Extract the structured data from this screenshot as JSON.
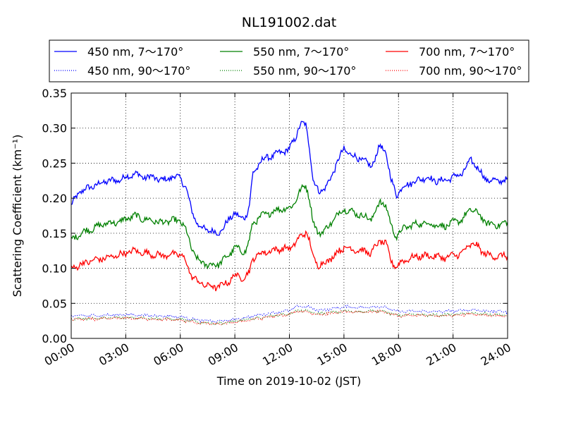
{
  "chart_data": {
    "type": "line",
    "title": "NL191002.dat",
    "xlabel": "Time on 2019-10-02 (JST)",
    "ylabel": "Scattering Coefficient (km⁻¹)",
    "xlim": [
      0,
      24
    ],
    "ylim": [
      0,
      0.35
    ],
    "xticks": [
      "00:00",
      "03:00",
      "06:00",
      "09:00",
      "12:00",
      "15:00",
      "18:00",
      "21:00",
      "24:00"
    ],
    "yticks": [
      "0.00",
      "0.05",
      "0.10",
      "0.15",
      "0.20",
      "0.25",
      "0.30",
      "0.35"
    ],
    "grid": true,
    "legend_position": "top",
    "series": [
      {
        "name": "450 nm, 7～170°",
        "color": "#0000ff",
        "style": "solid",
        "points": [
          [
            0,
            0.19
          ],
          [
            0.5,
            0.21
          ],
          [
            1,
            0.215
          ],
          [
            1.5,
            0.22
          ],
          [
            2,
            0.225
          ],
          [
            2.5,
            0.225
          ],
          [
            3,
            0.23
          ],
          [
            3.5,
            0.235
          ],
          [
            4,
            0.23
          ],
          [
            4.5,
            0.23
          ],
          [
            5,
            0.225
          ],
          [
            5.5,
            0.23
          ],
          [
            6,
            0.23
          ],
          [
            6.3,
            0.215
          ],
          [
            6.6,
            0.185
          ],
          [
            7,
            0.16
          ],
          [
            7.5,
            0.155
          ],
          [
            8,
            0.15
          ],
          [
            8.3,
            0.155
          ],
          [
            8.7,
            0.17
          ],
          [
            9,
            0.18
          ],
          [
            9.3,
            0.17
          ],
          [
            9.6,
            0.175
          ],
          [
            9.8,
            0.19
          ],
          [
            10,
            0.235
          ],
          [
            10.5,
            0.255
          ],
          [
            11,
            0.26
          ],
          [
            11.5,
            0.265
          ],
          [
            12,
            0.27
          ],
          [
            12.3,
            0.285
          ],
          [
            12.6,
            0.305
          ],
          [
            12.9,
            0.305
          ],
          [
            13.1,
            0.275
          ],
          [
            13.3,
            0.225
          ],
          [
            13.6,
            0.21
          ],
          [
            14,
            0.215
          ],
          [
            14.3,
            0.23
          ],
          [
            14.6,
            0.25
          ],
          [
            15,
            0.27
          ],
          [
            15.5,
            0.26
          ],
          [
            16,
            0.255
          ],
          [
            16.5,
            0.245
          ],
          [
            17,
            0.275
          ],
          [
            17.3,
            0.265
          ],
          [
            17.6,
            0.225
          ],
          [
            17.9,
            0.205
          ],
          [
            18.2,
            0.215
          ],
          [
            18.5,
            0.22
          ],
          [
            19,
            0.225
          ],
          [
            19.5,
            0.23
          ],
          [
            20,
            0.225
          ],
          [
            20.5,
            0.225
          ],
          [
            21,
            0.23
          ],
          [
            21.5,
            0.235
          ],
          [
            22,
            0.255
          ],
          [
            22.3,
            0.245
          ],
          [
            22.7,
            0.23
          ],
          [
            23,
            0.225
          ],
          [
            23.5,
            0.225
          ],
          [
            24,
            0.225
          ]
        ]
      },
      {
        "name": "550 nm, 7～170°",
        "color": "#008000",
        "style": "solid",
        "points": [
          [
            0,
            0.14
          ],
          [
            0.5,
            0.15
          ],
          [
            1,
            0.155
          ],
          [
            1.5,
            0.16
          ],
          [
            2,
            0.165
          ],
          [
            2.5,
            0.165
          ],
          [
            3,
            0.17
          ],
          [
            3.5,
            0.175
          ],
          [
            4,
            0.17
          ],
          [
            4.5,
            0.168
          ],
          [
            5,
            0.165
          ],
          [
            5.5,
            0.168
          ],
          [
            6,
            0.168
          ],
          [
            6.3,
            0.155
          ],
          [
            6.6,
            0.13
          ],
          [
            7,
            0.11
          ],
          [
            7.5,
            0.105
          ],
          [
            8,
            0.105
          ],
          [
            8.3,
            0.11
          ],
          [
            8.7,
            0.12
          ],
          [
            9,
            0.13
          ],
          [
            9.3,
            0.125
          ],
          [
            9.6,
            0.125
          ],
          [
            9.8,
            0.14
          ],
          [
            10,
            0.165
          ],
          [
            10.5,
            0.175
          ],
          [
            11,
            0.18
          ],
          [
            11.5,
            0.185
          ],
          [
            12,
            0.185
          ],
          [
            12.3,
            0.195
          ],
          [
            12.6,
            0.21
          ],
          [
            12.9,
            0.22
          ],
          [
            13.1,
            0.2
          ],
          [
            13.3,
            0.165
          ],
          [
            13.6,
            0.15
          ],
          [
            14,
            0.155
          ],
          [
            14.3,
            0.165
          ],
          [
            14.6,
            0.175
          ],
          [
            15,
            0.185
          ],
          [
            15.5,
            0.18
          ],
          [
            16,
            0.175
          ],
          [
            16.5,
            0.17
          ],
          [
            17,
            0.195
          ],
          [
            17.3,
            0.19
          ],
          [
            17.6,
            0.16
          ],
          [
            17.9,
            0.145
          ],
          [
            18.2,
            0.155
          ],
          [
            18.5,
            0.16
          ],
          [
            19,
            0.163
          ],
          [
            19.5,
            0.165
          ],
          [
            20,
            0.162
          ],
          [
            20.5,
            0.16
          ],
          [
            21,
            0.165
          ],
          [
            21.5,
            0.17
          ],
          [
            22,
            0.185
          ],
          [
            22.3,
            0.18
          ],
          [
            22.7,
            0.168
          ],
          [
            23,
            0.163
          ],
          [
            23.5,
            0.162
          ],
          [
            24,
            0.165
          ]
        ]
      },
      {
        "name": "700 nm, 7～170°",
        "color": "#ff0000",
        "style": "solid",
        "points": [
          [
            0,
            0.1
          ],
          [
            0.5,
            0.105
          ],
          [
            1,
            0.11
          ],
          [
            1.5,
            0.113
          ],
          [
            2,
            0.115
          ],
          [
            2.5,
            0.118
          ],
          [
            3,
            0.122
          ],
          [
            3.5,
            0.125
          ],
          [
            4,
            0.122
          ],
          [
            4.5,
            0.12
          ],
          [
            5,
            0.118
          ],
          [
            5.5,
            0.12
          ],
          [
            6,
            0.12
          ],
          [
            6.3,
            0.11
          ],
          [
            6.6,
            0.09
          ],
          [
            7,
            0.08
          ],
          [
            7.5,
            0.075
          ],
          [
            8,
            0.073
          ],
          [
            8.3,
            0.076
          ],
          [
            8.7,
            0.082
          ],
          [
            9,
            0.09
          ],
          [
            9.3,
            0.087
          ],
          [
            9.6,
            0.088
          ],
          [
            9.8,
            0.095
          ],
          [
            10,
            0.115
          ],
          [
            10.5,
            0.122
          ],
          [
            11,
            0.125
          ],
          [
            11.5,
            0.128
          ],
          [
            12,
            0.128
          ],
          [
            12.3,
            0.135
          ],
          [
            12.6,
            0.145
          ],
          [
            12.9,
            0.152
          ],
          [
            13.1,
            0.14
          ],
          [
            13.3,
            0.115
          ],
          [
            13.6,
            0.105
          ],
          [
            14,
            0.108
          ],
          [
            14.3,
            0.115
          ],
          [
            14.6,
            0.122
          ],
          [
            15,
            0.13
          ],
          [
            15.5,
            0.127
          ],
          [
            16,
            0.125
          ],
          [
            16.5,
            0.122
          ],
          [
            17,
            0.14
          ],
          [
            17.3,
            0.135
          ],
          [
            17.6,
            0.11
          ],
          [
            17.9,
            0.102
          ],
          [
            18.2,
            0.11
          ],
          [
            18.5,
            0.113
          ],
          [
            19,
            0.117
          ],
          [
            19.5,
            0.118
          ],
          [
            20,
            0.117
          ],
          [
            20.5,
            0.115
          ],
          [
            21,
            0.118
          ],
          [
            21.5,
            0.122
          ],
          [
            22,
            0.135
          ],
          [
            22.3,
            0.132
          ],
          [
            22.7,
            0.122
          ],
          [
            23,
            0.118
          ],
          [
            23.5,
            0.117
          ],
          [
            24,
            0.118
          ]
        ]
      },
      {
        "name": "450 nm, 90～170°",
        "color": "#0000ff",
        "style": "dotted",
        "points": [
          [
            0,
            0.032
          ],
          [
            2,
            0.033
          ],
          [
            3,
            0.034
          ],
          [
            4,
            0.033
          ],
          [
            5,
            0.032
          ],
          [
            6,
            0.031
          ],
          [
            7,
            0.026
          ],
          [
            8,
            0.024
          ],
          [
            9,
            0.027
          ],
          [
            10,
            0.032
          ],
          [
            11,
            0.036
          ],
          [
            12,
            0.04
          ],
          [
            12.5,
            0.046
          ],
          [
            13,
            0.045
          ],
          [
            13.5,
            0.04
          ],
          [
            14,
            0.041
          ],
          [
            15,
            0.045
          ],
          [
            16,
            0.044
          ],
          [
            17,
            0.046
          ],
          [
            17.5,
            0.042
          ],
          [
            18,
            0.038
          ],
          [
            19,
            0.039
          ],
          [
            20,
            0.038
          ],
          [
            21,
            0.039
          ],
          [
            22,
            0.041
          ],
          [
            23,
            0.039
          ],
          [
            24,
            0.038
          ]
        ]
      },
      {
        "name": "550 nm, 90～170°",
        "color": "#008000",
        "style": "dotted",
        "points": [
          [
            0,
            0.028
          ],
          [
            2,
            0.029
          ],
          [
            3,
            0.03
          ],
          [
            4,
            0.029
          ],
          [
            5,
            0.028
          ],
          [
            6,
            0.027
          ],
          [
            7,
            0.023
          ],
          [
            8,
            0.021
          ],
          [
            9,
            0.024
          ],
          [
            10,
            0.028
          ],
          [
            11,
            0.032
          ],
          [
            12,
            0.035
          ],
          [
            12.5,
            0.04
          ],
          [
            13,
            0.039
          ],
          [
            13.5,
            0.035
          ],
          [
            14,
            0.036
          ],
          [
            15,
            0.039
          ],
          [
            16,
            0.038
          ],
          [
            17,
            0.04
          ],
          [
            17.5,
            0.036
          ],
          [
            18,
            0.033
          ],
          [
            19,
            0.034
          ],
          [
            20,
            0.033
          ],
          [
            21,
            0.034
          ],
          [
            22,
            0.036
          ],
          [
            23,
            0.034
          ],
          [
            24,
            0.033
          ]
        ]
      },
      {
        "name": "700 nm, 90～170°",
        "color": "#ff0000",
        "style": "dotted",
        "points": [
          [
            0,
            0.027
          ],
          [
            2,
            0.028
          ],
          [
            3,
            0.029
          ],
          [
            4,
            0.028
          ],
          [
            5,
            0.027
          ],
          [
            6,
            0.026
          ],
          [
            7,
            0.022
          ],
          [
            8,
            0.02
          ],
          [
            9,
            0.023
          ],
          [
            10,
            0.027
          ],
          [
            11,
            0.031
          ],
          [
            12,
            0.034
          ],
          [
            12.5,
            0.039
          ],
          [
            13,
            0.038
          ],
          [
            13.5,
            0.034
          ],
          [
            14,
            0.035
          ],
          [
            15,
            0.038
          ],
          [
            16,
            0.037
          ],
          [
            17,
            0.039
          ],
          [
            17.5,
            0.035
          ],
          [
            18,
            0.032
          ],
          [
            19,
            0.033
          ],
          [
            20,
            0.032
          ],
          [
            21,
            0.033
          ],
          [
            22,
            0.035
          ],
          [
            23,
            0.033
          ],
          [
            24,
            0.032
          ]
        ]
      }
    ]
  }
}
